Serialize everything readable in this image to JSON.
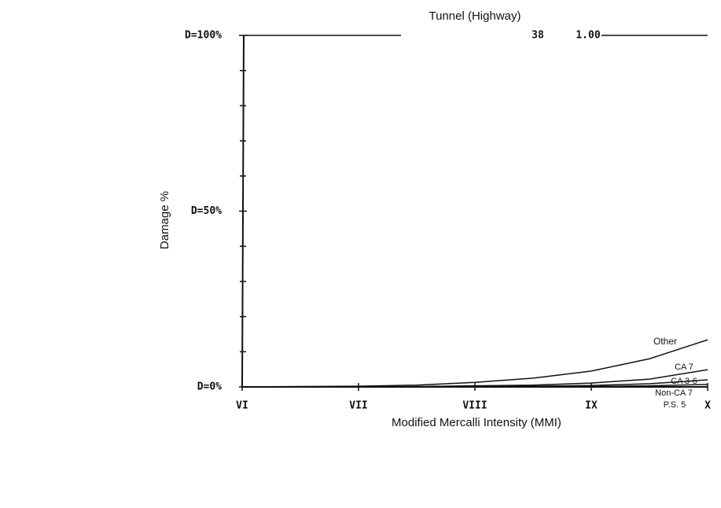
{
  "chart_data": {
    "type": "line",
    "title": "Tunnel (Highway)",
    "x_label": "Modified Mercalli Intensity (MMI)",
    "y_label": "Damage %",
    "annotations": [
      "38",
      "1.00",
      "P.S. 5"
    ],
    "x": [
      6,
      6.5,
      7,
      7.5,
      8,
      8.5,
      9,
      9.5,
      10
    ],
    "xlim": [
      6,
      10
    ],
    "xticks": [
      {
        "value": 6,
        "label": "VI"
      },
      {
        "value": 7,
        "label": "VII"
      },
      {
        "value": 8,
        "label": "VIII"
      },
      {
        "value": 9,
        "label": "IX"
      },
      {
        "value": 10,
        "label": "X"
      }
    ],
    "ylim": [
      0,
      100
    ],
    "yticks": [
      {
        "value": 0,
        "label": "D=0%"
      },
      {
        "value": 50,
        "label": "D=50%"
      },
      {
        "value": 100,
        "label": "D=100%"
      }
    ],
    "yminorticks": [
      10,
      20,
      30,
      40,
      60,
      70,
      80,
      90
    ],
    "series": [
      {
        "name": "Other",
        "color": "#111111",
        "values": [
          0,
          0.1,
          0.2,
          0.5,
          1.3,
          2.5,
          4.5,
          8,
          13.4
        ]
      },
      {
        "name": "CA 7",
        "color": "#111111",
        "values": [
          0,
          0,
          0,
          0.1,
          0.3,
          0.5,
          1.1,
          2.2,
          4.9
        ]
      },
      {
        "name": "CA 3-6",
        "color": "#111111",
        "values": [
          0,
          0,
          0,
          0,
          0.1,
          0.2,
          0.4,
          0.9,
          2
        ]
      },
      {
        "name": "Non-CA 7",
        "color": "#111111",
        "values": [
          0,
          0,
          0,
          0,
          0,
          0,
          0.1,
          0.3,
          0.7
        ]
      }
    ]
  }
}
